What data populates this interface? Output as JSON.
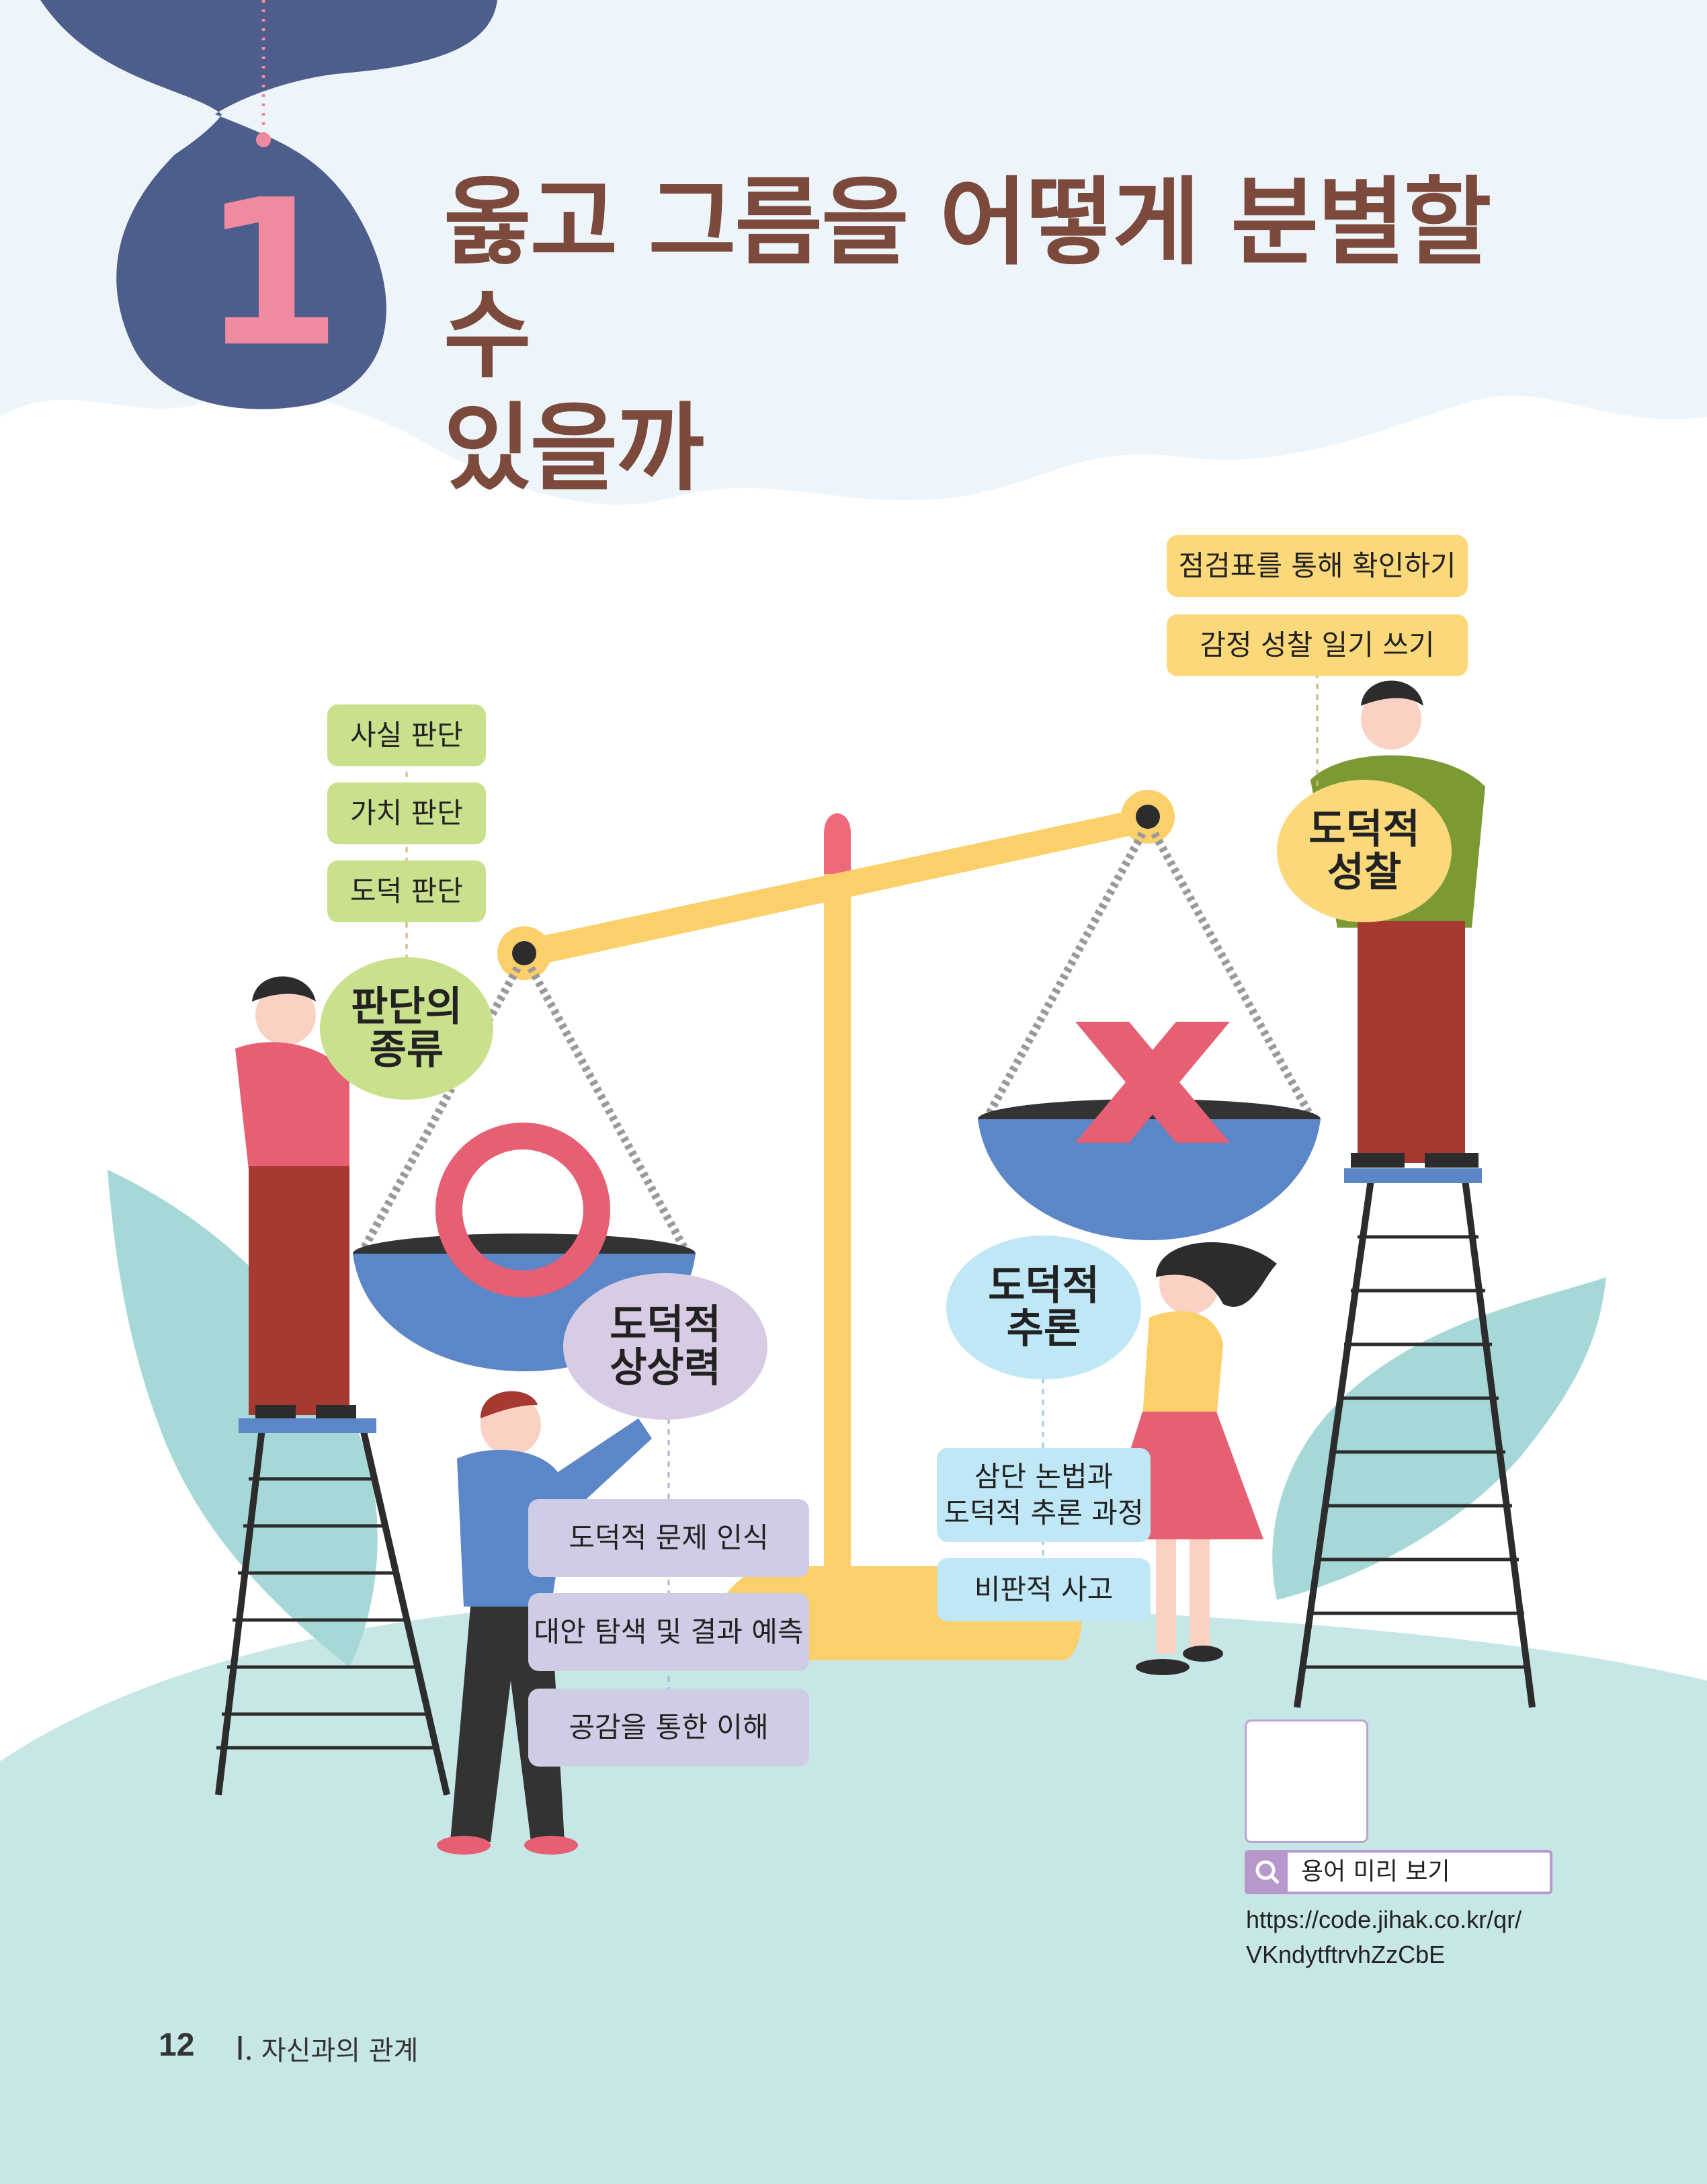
{
  "chapter": {
    "number": "1",
    "title_line1": "옳고 그름을 어떻게 분별할 수",
    "title_line2": "있을까"
  },
  "left_stack": {
    "tags": [
      "사실 판단",
      "가치 판단",
      "도덕 판단"
    ],
    "bubble_line1": "판단의",
    "bubble_line2": "종류"
  },
  "right_stack": {
    "tags": [
      "점검표를 통해 확인하기",
      "감정 성찰 일기 쓰기"
    ],
    "bubble_line1": "도덕적",
    "bubble_line2": "성찰"
  },
  "imagination": {
    "bubble_line1": "도덕적",
    "bubble_line2": "상상력",
    "tags": [
      "도덕적 문제 인식",
      "대안 탐색 및 결과 예측",
      "공감을 통한 이해"
    ]
  },
  "reasoning": {
    "bubble_line1": "도덕적",
    "bubble_line2": "추론",
    "tag1_line1": "삼단 논법과",
    "tag1_line2": "도덕적 추론 과정",
    "tag2": "비판적 사고"
  },
  "qr": {
    "search_label": "용어 미리 보기",
    "url_line1": "https://code.jihak.co.kr/qr/",
    "url_line2": "VKndytftrvhZzCbE"
  },
  "footer": {
    "page_number": "12",
    "section_roman": "Ⅰ.",
    "section_title": "자신과의 관계"
  },
  "colors": {
    "title": "#7b4a3c",
    "chapter_badge": "#4e5e8c",
    "chapter_number": "#f08aa0",
    "green_tag": "#c9e08c",
    "yellow_tag": "#fbd87a",
    "purple_tag": "#cfcde6",
    "blue_tag": "#bfe7f5"
  },
  "icons": [
    "scale",
    "circle-o-mark",
    "x-mark",
    "ladder",
    "leaf",
    "qr-code",
    "search-icon"
  ]
}
